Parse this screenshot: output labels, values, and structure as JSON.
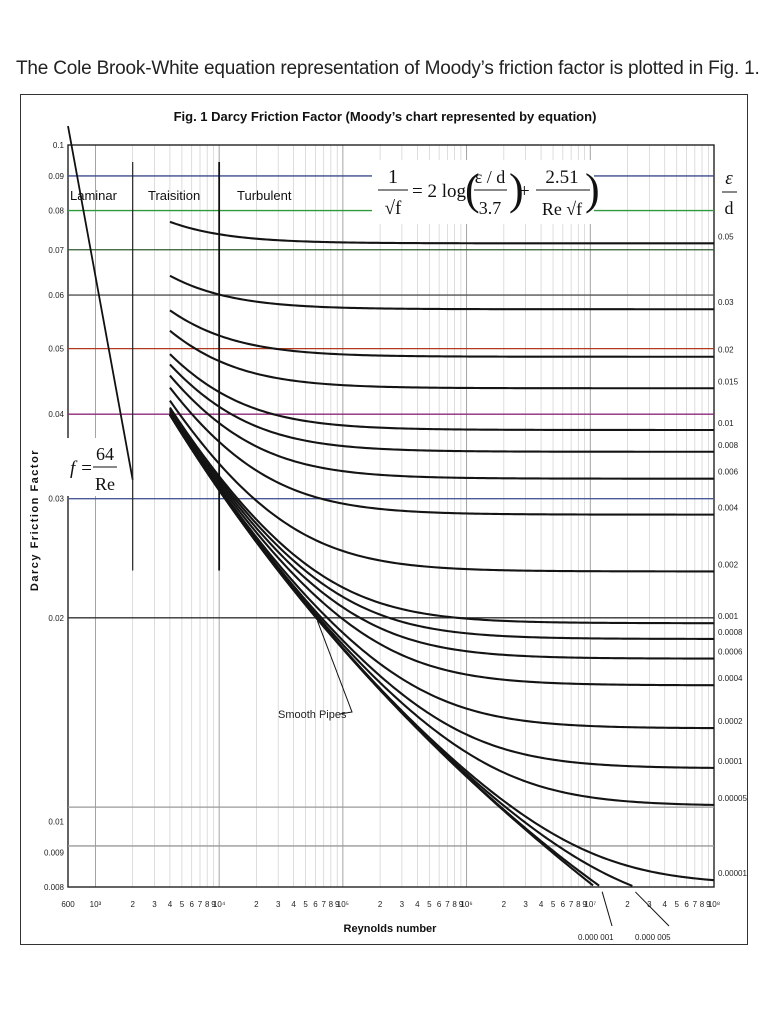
{
  "intro_text": "The Cole Brook-White equation representation of Moody’s friction factor is plotted in Fig. 1.",
  "chart_data": {
    "type": "line",
    "title": "Fig. 1  Darcy Friction Factor (Moody’s chart represented by equation)",
    "xlabel": "Reynolds number",
    "ylabel": "Darcy Friction Factor",
    "x_scale": "log",
    "y_scale": "log",
    "xlim": [
      600,
      100000000
    ],
    "ylim": [
      0.008,
      0.1
    ],
    "y_ticks": [
      {
        "value": 0.1,
        "label": "0.1"
      },
      {
        "value": 0.09,
        "label": "0.09"
      },
      {
        "value": 0.08,
        "label": "0.08"
      },
      {
        "value": 0.07,
        "label": "0.07"
      },
      {
        "value": 0.06,
        "label": "0.06"
      },
      {
        "value": 0.05,
        "label": "0.05"
      },
      {
        "value": 0.04,
        "label": "0.04"
      },
      {
        "value": 0.03,
        "label": "0.03"
      },
      {
        "value": 0.02,
        "label": "0.02"
      },
      {
        "value": 0.01,
        "label": "0.01"
      },
      {
        "value": 0.009,
        "label": "0.009"
      },
      {
        "value": 0.008,
        "label": "0.008"
      }
    ],
    "x_ticks": [
      {
        "value": 600,
        "label": "600"
      },
      {
        "value": 1000,
        "label": "10³"
      },
      {
        "value": 2000,
        "label": "2"
      },
      {
        "value": 3000,
        "label": "3"
      },
      {
        "value": 4000,
        "label": "4"
      },
      {
        "value": 5000,
        "label": "5"
      },
      {
        "value": 6000,
        "label": "6"
      },
      {
        "value": 7000,
        "label": "7"
      },
      {
        "value": 8000,
        "label": "8"
      },
      {
        "value": 9000,
        "label": "9"
      },
      {
        "value": 10000,
        "label": "10⁴"
      },
      {
        "value": 20000,
        "label": "2"
      },
      {
        "value": 30000,
        "label": "3"
      },
      {
        "value": 40000,
        "label": "4"
      },
      {
        "value": 50000,
        "label": "5"
      },
      {
        "value": 60000,
        "label": "6"
      },
      {
        "value": 70000,
        "label": "7"
      },
      {
        "value": 80000,
        "label": "8"
      },
      {
        "value": 90000,
        "label": "9"
      },
      {
        "value": 100000,
        "label": "10⁵"
      },
      {
        "value": 200000,
        "label": "2"
      },
      {
        "value": 300000,
        "label": "3"
      },
      {
        "value": 400000,
        "label": "4"
      },
      {
        "value": 500000,
        "label": "5"
      },
      {
        "value": 600000,
        "label": "6"
      },
      {
        "value": 700000,
        "label": "7"
      },
      {
        "value": 800000,
        "label": "8"
      },
      {
        "value": 900000,
        "label": "9"
      },
      {
        "value": 1000000,
        "label": "10⁶"
      },
      {
        "value": 2000000,
        "label": "2"
      },
      {
        "value": 3000000,
        "label": "3"
      },
      {
        "value": 4000000,
        "label": "4"
      },
      {
        "value": 5000000,
        "label": "5"
      },
      {
        "value": 6000000,
        "label": "6"
      },
      {
        "value": 7000000,
        "label": "7"
      },
      {
        "value": 8000000,
        "label": "8"
      },
      {
        "value": 9000000,
        "label": "9"
      },
      {
        "value": 10000000,
        "label": "10⁷"
      },
      {
        "value": 20000000,
        "label": "2"
      },
      {
        "value": 30000000,
        "label": "3"
      },
      {
        "value": 40000000,
        "label": "4"
      },
      {
        "value": 50000000,
        "label": "5"
      },
      {
        "value": 60000000,
        "label": "6"
      },
      {
        "value": 70000000,
        "label": "7"
      },
      {
        "value": 80000000,
        "label": "8"
      },
      {
        "value": 90000000,
        "label": "9"
      },
      {
        "value": 100000000,
        "label": "10⁸"
      }
    ],
    "colored_reference_lines": [
      {
        "y": 0.09,
        "color": "#3b4a8c"
      },
      {
        "y": 0.08,
        "color": "#2e9a3c"
      },
      {
        "y": 0.07,
        "color": "#2f5a2f"
      },
      {
        "y": 0.06,
        "color": "#555555"
      },
      {
        "y": 0.05,
        "color": "#b03a1e"
      },
      {
        "y": 0.04,
        "color": "#8e2a78"
      },
      {
        "y": 0.03,
        "color": "#4a5a96"
      },
      {
        "y": 0.02,
        "color": "#333333"
      },
      {
        "y": 0.0105,
        "color": "#9a9a9a"
      },
      {
        "y": 0.0092,
        "color": "#9a9a9a"
      }
    ],
    "regions": {
      "laminar_label": "Laminar",
      "transition_label": "Traisition",
      "turbulent_label": "Turbulent",
      "transition_start": 2000,
      "turbulent_start": 10000
    },
    "laminar": {
      "equation_lhs": "f =",
      "equation_num": "64",
      "equation_den": "Re",
      "x_start": 600,
      "x_end": 2000
    },
    "colebrook_equation": {
      "lhs_num": "1",
      "lhs_den": "√f",
      "equals": "= 2 log",
      "term1_num": "ε / d",
      "term1_den": "3.7",
      "plus": "+",
      "term2_num": "2.51",
      "term2_den": "Re √f"
    },
    "roughness_axis_label_num": "ε",
    "roughness_axis_label_den": "d",
    "re_start": 4000,
    "series": [
      {
        "name": "0.05",
        "roughness": 0.05,
        "label": "0.05"
      },
      {
        "name": "0.03",
        "roughness": 0.03,
        "label": "0.03"
      },
      {
        "name": "0.02",
        "roughness": 0.02,
        "label": "0.02"
      },
      {
        "name": "0.015",
        "roughness": 0.015,
        "label": "0.015"
      },
      {
        "name": "0.01",
        "roughness": 0.01,
        "label": "0.01"
      },
      {
        "name": "0.008",
        "roughness": 0.008,
        "label": "0.008"
      },
      {
        "name": "0.006",
        "roughness": 0.006,
        "label": "0.006"
      },
      {
        "name": "0.004",
        "roughness": 0.004,
        "label": "0.004"
      },
      {
        "name": "0.002",
        "roughness": 0.002,
        "label": "0.002"
      },
      {
        "name": "0.001",
        "roughness": 0.001,
        "label": "0.001"
      },
      {
        "name": "0.0008",
        "roughness": 0.0008,
        "label": "0.0008"
      },
      {
        "name": "0.0006",
        "roughness": 0.0006,
        "label": "0.0006"
      },
      {
        "name": "0.0004",
        "roughness": 0.0004,
        "label": "0.0004"
      },
      {
        "name": "0.0002",
        "roughness": 0.0002,
        "label": "0.0002"
      },
      {
        "name": "0.0001",
        "roughness": 0.0001,
        "label": "0.0001"
      },
      {
        "name": "0.00005",
        "roughness": 5e-05,
        "label": "0.00005"
      },
      {
        "name": "0.00001",
        "roughness": 1e-05,
        "label": "0.00001"
      },
      {
        "name": "0.000005",
        "roughness": 5e-06,
        "label": "0.000 005"
      },
      {
        "name": "0.000001",
        "roughness": 1e-06,
        "label": "0.000 001"
      },
      {
        "name": "Smooth Pipes",
        "roughness": 0,
        "label": "Smooth Pipes"
      }
    ]
  }
}
